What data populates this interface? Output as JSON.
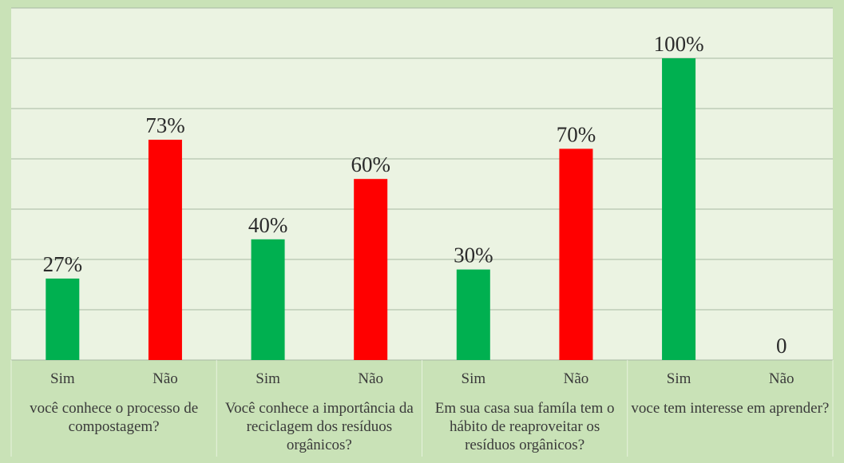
{
  "chart_data": {
    "type": "bar",
    "ylim": [
      0,
      100
    ],
    "grid": true,
    "colors": {
      "sim": "#00b050",
      "nao": "#ff0000",
      "plot_bg": "#ebf3e2",
      "axis_bg": "#c9e2b7",
      "grid": "#a7b8a3"
    },
    "groups": [
      {
        "category": "você conhece o processo de compostagem?",
        "bars": [
          {
            "label": "Sim",
            "value": 27,
            "display": "27%",
            "color": "#00b050"
          },
          {
            "label": "Não",
            "value": 73,
            "display": "73%",
            "color": "#ff0000"
          }
        ]
      },
      {
        "category": "Você conhece a importância da reciclagem dos resíduos orgânicos?",
        "bars": [
          {
            "label": "Sim",
            "value": 40,
            "display": "40%",
            "color": "#00b050"
          },
          {
            "label": "Não",
            "value": 60,
            "display": "60%",
            "color": "#ff0000"
          }
        ]
      },
      {
        "category": "Em sua casa sua famíla tem o hábito de reaproveitar os resíduos orgânicos?",
        "bars": [
          {
            "label": "Sim",
            "value": 30,
            "display": "30%",
            "color": "#00b050"
          },
          {
            "label": "Não",
            "value": 70,
            "display": "70%",
            "color": "#ff0000"
          }
        ]
      },
      {
        "category": "voce tem interesse em aprender?",
        "bars": [
          {
            "label": "Sim",
            "value": 100,
            "display": "100%",
            "color": "#00b050"
          },
          {
            "label": "Não",
            "value": 0,
            "display": "0",
            "color": "#ff0000"
          }
        ]
      }
    ]
  }
}
